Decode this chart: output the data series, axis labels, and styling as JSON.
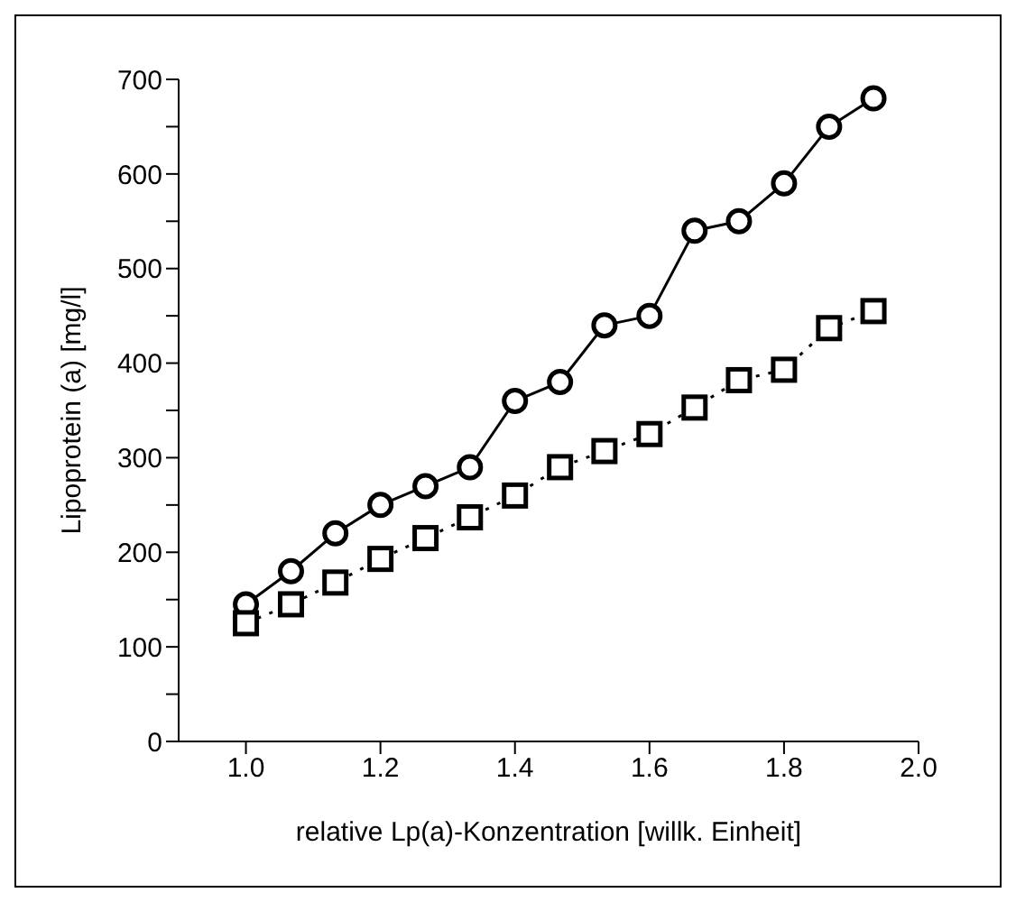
{
  "chart_data": {
    "type": "line",
    "xlabel": "relative Lp(a)-Konzentration [willk. Einheit]",
    "ylabel": "Lipoprotein (a) [mg/l]",
    "x": [
      1.0,
      1.067,
      1.133,
      1.2,
      1.267,
      1.333,
      1.4,
      1.467,
      1.533,
      1.6,
      1.667,
      1.733,
      1.8,
      1.867,
      1.933
    ],
    "series": [
      {
        "color": "#000000",
        "marker": "circle",
        "line_style": "solid",
        "values": [
          145,
          180,
          220,
          250,
          270,
          290,
          360,
          380,
          440,
          450,
          540,
          550,
          590,
          650,
          680
        ]
      },
      {
        "color": "#000000",
        "marker": "square",
        "line_style": "dotted",
        "values": [
          125,
          145,
          168,
          193,
          215,
          237,
          260,
          290,
          307,
          325,
          353,
          382,
          393,
          437,
          455
        ]
      }
    ],
    "xlim": [
      0.9,
      2.0
    ],
    "xticks": [
      {
        "value": 1,
        "label": "1.0"
      },
      {
        "value": 1.2,
        "label": "1.2"
      },
      {
        "value": 1.4,
        "label": "1.4"
      },
      {
        "value": 1.6,
        "label": "1.6"
      },
      {
        "value": 1.8,
        "label": "1.8"
      },
      {
        "value": 2,
        "label": "2.0"
      }
    ],
    "ylim": [
      0,
      700
    ],
    "yticks": [
      0,
      {
        "value": 50,
        "label": null
      },
      100,
      {
        "value": 150,
        "label": null
      },
      200,
      {
        "value": 250,
        "label": null
      },
      300,
      {
        "value": 350,
        "label": null
      },
      400,
      {
        "value": 450,
        "label": null
      },
      500,
      {
        "value": 550,
        "label": null
      },
      600,
      {
        "value": 650,
        "label": null
      },
      700
    ],
    "grid": false,
    "legend": false
  }
}
